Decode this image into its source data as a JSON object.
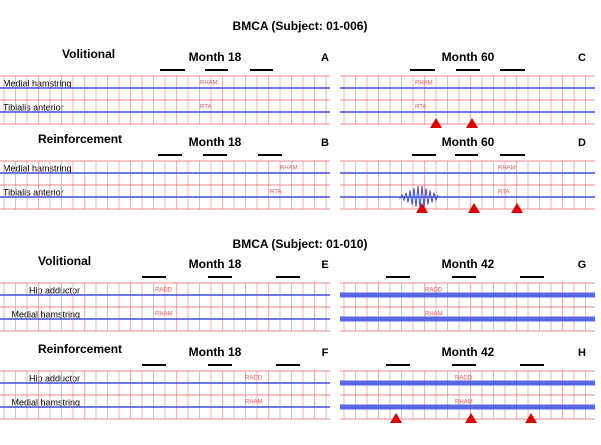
{
  "sections": [
    {
      "title": "BMCA (Subject: 01-006)",
      "rows": [
        {
          "condition": "Volitional",
          "channels": [
            {
              "name": "Medial hamstring",
              "code": "RHAM"
            },
            {
              "name": "Tibialis anterior",
              "code": "RTA"
            }
          ],
          "panels": [
            {
              "month": "Month 18",
              "letter": "A"
            },
            {
              "month": "Month 60",
              "letter": "C"
            }
          ]
        },
        {
          "condition": "Reinforcement",
          "channels": [
            {
              "name": "Medial hamstring",
              "code": "RHAM"
            },
            {
              "name": "Tibialis anterior",
              "code": "RTA"
            }
          ],
          "panels": [
            {
              "month": "Month 18",
              "letter": "B"
            },
            {
              "month": "Month 60",
              "letter": "D"
            }
          ]
        }
      ]
    },
    {
      "title": "BMCA (Subject: 01-010)",
      "rows": [
        {
          "condition": "Volitional",
          "channels": [
            {
              "name": "Hip adductor",
              "code": "RADD"
            },
            {
              "name": "Medial hamstring",
              "code": "RHAM"
            }
          ],
          "panels": [
            {
              "month": "Month 18",
              "letter": "E"
            },
            {
              "month": "Month 42",
              "letter": "G"
            }
          ]
        },
        {
          "condition": "Reinforcement",
          "channels": [
            {
              "name": "Hip adductor",
              "code": "RADD"
            },
            {
              "name": "Medial hamstring",
              "code": "RHAM"
            }
          ],
          "panels": [
            {
              "month": "Month 18",
              "letter": "F"
            },
            {
              "month": "Month 42",
              "letter": "H"
            }
          ]
        }
      ]
    }
  ]
}
